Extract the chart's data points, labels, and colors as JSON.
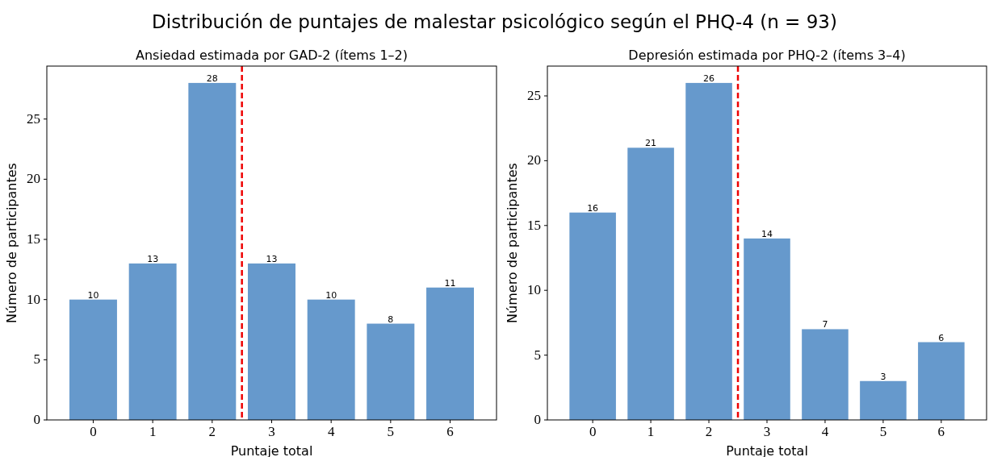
{
  "chart_data": [
    {
      "type": "bar",
      "annotations": [
        "Distribución de puntajes de malestar psicológico según el PHQ-4 (n = 93)"
      ],
      "title": "Ansiedad estimada por GAD-2 (ítems 1–2)",
      "xlabel": "Puntaje total",
      "ylabel": "Número de participantes",
      "x": [
        0,
        1,
        2,
        3,
        4,
        5,
        6
      ],
      "values": [
        10,
        13,
        28,
        13,
        10,
        8,
        11
      ],
      "color": "#6699cc",
      "xlim": [
        -0.78,
        6.78
      ],
      "xticks": [
        0,
        1,
        2,
        3,
        4,
        5,
        6
      ],
      "ylim": [
        0,
        29.4
      ],
      "yticks": [
        0,
        5,
        10,
        15,
        20,
        25
      ],
      "data_labels": true,
      "ref_lines": [
        {
          "axis": "x",
          "value": 2.5,
          "color": "#ee0000",
          "line_style": "dashed"
        }
      ]
    },
    {
      "type": "bar",
      "title": "Depresión estimada por PHQ-2 (ítems 3–4)",
      "xlabel": "Puntaje total",
      "ylabel": "Número de participantes",
      "x": [
        0,
        1,
        2,
        3,
        4,
        5,
        6
      ],
      "values": [
        16,
        21,
        26,
        14,
        7,
        3,
        6
      ],
      "color": "#6699cc",
      "xlim": [
        -0.78,
        6.78
      ],
      "xticks": [
        0,
        1,
        2,
        3,
        4,
        5,
        6
      ],
      "ylim": [
        0,
        27.3
      ],
      "yticks": [
        0,
        5,
        10,
        15,
        20,
        25
      ],
      "data_labels": true,
      "ref_lines": [
        {
          "axis": "x",
          "value": 2.5,
          "color": "#ee0000",
          "line_style": "dashed"
        }
      ]
    }
  ]
}
